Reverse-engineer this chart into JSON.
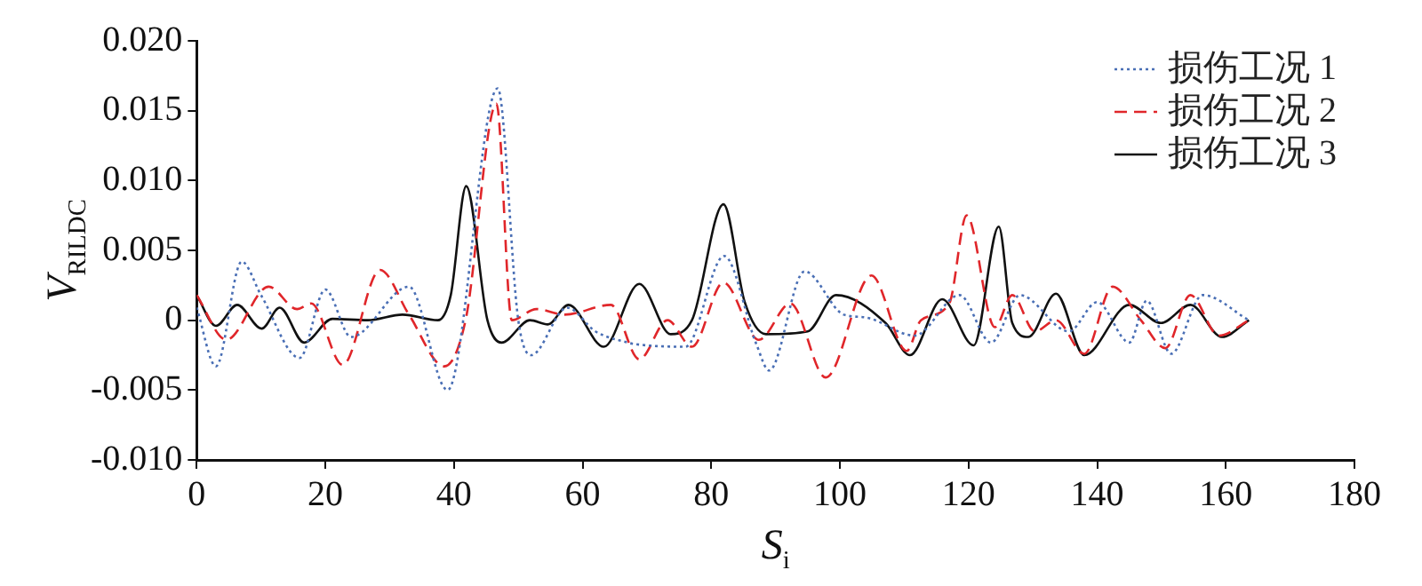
{
  "chart_data": {
    "type": "line",
    "xlabel": "S$_{i}$",
    "ylabel": "V$_{RILDC}$",
    "xlim": [
      0,
      180
    ],
    "xticks": [
      0,
      20,
      40,
      60,
      80,
      100,
      120,
      140,
      160,
      180
    ],
    "ylim": [
      -0.01,
      0.02
    ],
    "yticks": [
      {
        "value": -0.01,
        "label": "-0.010"
      },
      {
        "value": -0.005,
        "label": "-0.005"
      },
      0,
      {
        "value": 0.005,
        "label": "0.005"
      },
      {
        "value": 0.01,
        "label": "0.010"
      },
      {
        "value": 0.015,
        "label": "0.015"
      },
      {
        "value": 0.02,
        "label": "0.020"
      }
    ],
    "grid": false,
    "legend": "top right",
    "marker": "none",
    "series": [
      {
        "name": "损伤工况 1",
        "color": "#4a6fb5",
        "line_style": "dotted",
        "x": [
          0,
          3,
          7,
          10,
          16,
          20,
          24,
          33,
          39,
          46.8,
          50,
          52,
          57.6,
          62,
          67,
          68,
          76,
          82,
          87,
          89,
          94.5,
          100.6,
          104,
          111.6,
          118.6,
          123.5,
          128,
          135.6,
          140,
          145,
          147.7,
          151.5,
          156.4,
          163.6
        ],
        "values": [
          0.0009,
          -0.0033,
          0.0042,
          0.0018,
          -0.0027,
          0.0022,
          -0.0012,
          0.0024,
          -0.005,
          0.0166,
          0,
          -0.0025,
          0.0009,
          -0.0008,
          -0.0016,
          -0.0017,
          -0.0019,
          0.0046,
          -0.0017,
          -0.0036,
          0.0035,
          0.0004,
          0.0002,
          -0.0011,
          0.0018,
          -0.0016,
          0.0018,
          -0.0008,
          0.0013,
          -0.0016,
          0.0014,
          -0.0024,
          0.0018,
          0
        ]
      },
      {
        "name": "损伤工况 2",
        "color": "#e0262a",
        "line_style": "dashed",
        "x": [
          0,
          4.6,
          11.2,
          15.6,
          17.8,
          22.7,
          28.5,
          33,
          38.5,
          41.8,
          46.6,
          49,
          52.8,
          57.2,
          64.4,
          68.8,
          73.2,
          77,
          81.9,
          87.4,
          92.3,
          97.8,
          104.9,
          110.4,
          112.6,
          117,
          119.7,
          124.1,
          126.8,
          130.3,
          133.6,
          138,
          142.4,
          146.8,
          150.6,
          154.5,
          158.9,
          163.6
        ],
        "values": [
          0.0018,
          -0.0014,
          0.0024,
          0.0008,
          0.0012,
          -0.0032,
          0.0036,
          0.0004,
          -0.0033,
          0,
          0.0155,
          0,
          0.0008,
          0.0004,
          0.0011,
          -0.0028,
          0,
          -0.0019,
          0.0027,
          -0.0014,
          0.0012,
          -0.0041,
          0.0032,
          -0.0022,
          0,
          0.0012,
          0.0075,
          -0.0005,
          0.0018,
          -0.0008,
          0,
          -0.0024,
          0.0024,
          0,
          -0.002,
          0.0018,
          -0.0011,
          0
        ]
      },
      {
        "name": "损伤工况 3",
        "color": "#111111",
        "line_style": "solid",
        "x": [
          0,
          3,
          6.3,
          10.1,
          12.9,
          16.7,
          21.1,
          26.6,
          32,
          37.5,
          39.5,
          41.9,
          45.2,
          47.4,
          51.8,
          54.6,
          57.8,
          63.3,
          68.8,
          73.7,
          77,
          81.9,
          85.2,
          88.5,
          95,
          99.4,
          107.1,
          110.9,
          115.9,
          120.8,
          124.7,
          126.8,
          129.3,
          133.6,
          138,
          145,
          149.9,
          154.5,
          159.4,
          163.6
        ],
        "values": [
          0.0018,
          -0.0004,
          0.0011,
          -0.0006,
          0.0009,
          -0.0016,
          0.0001,
          0,
          0.0004,
          0,
          0.0018,
          0.0096,
          0,
          -0.0016,
          0,
          -0.0003,
          0.0011,
          -0.0019,
          0.0026,
          -0.001,
          0,
          0.0083,
          0.0013,
          -0.001,
          -0.0008,
          0.0018,
          -0.0002,
          -0.0025,
          0.0015,
          -0.0018,
          0.0067,
          -0.0002,
          -0.0012,
          0.0019,
          -0.0025,
          0.0011,
          -0.0002,
          0.0011,
          -0.0012,
          0
        ]
      }
    ]
  }
}
